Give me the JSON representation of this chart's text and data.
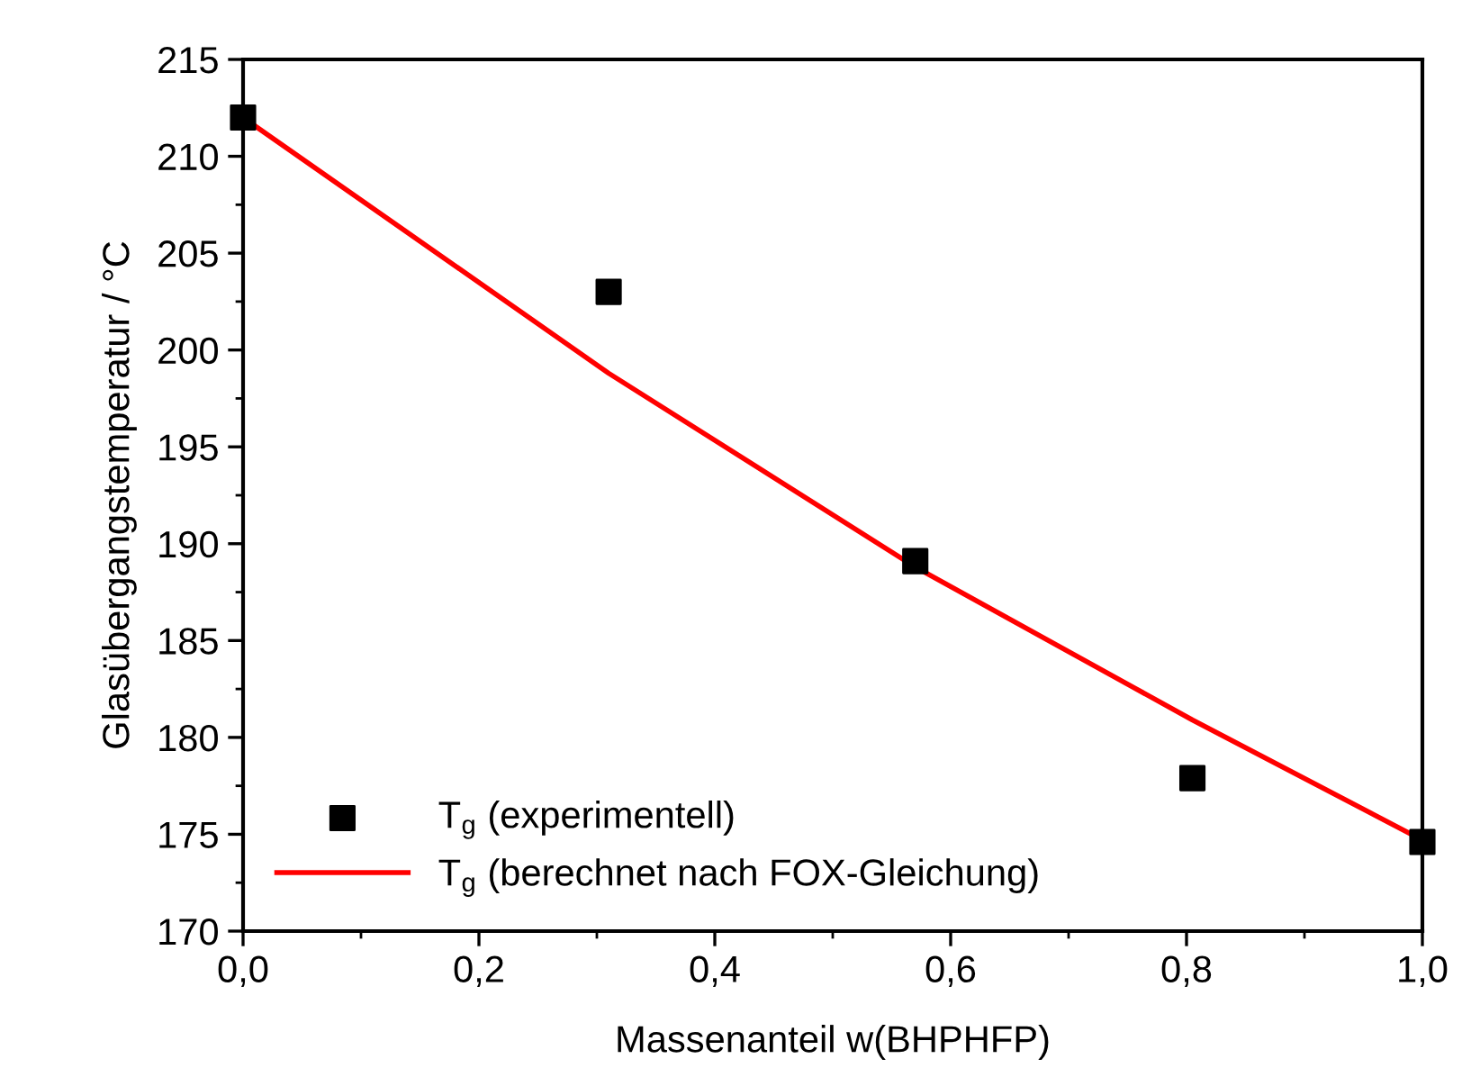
{
  "chart_data": {
    "type": "scatter",
    "xlabel": "Massenanteil w(BHPHFP)",
    "ylabel": "Glasübergangstemperatur / °C",
    "xlim": [
      0,
      1
    ],
    "ylim": [
      170,
      215
    ],
    "xticks": [
      {
        "value": 0,
        "label": "0,0"
      },
      {
        "value": 0.2,
        "label": "0,2"
      },
      {
        "value": 0.4,
        "label": "0,4"
      },
      {
        "value": 0.6,
        "label": "0,6"
      },
      {
        "value": 0.8,
        "label": "0,8"
      },
      {
        "value": 1,
        "label": "1,0"
      }
    ],
    "yticks": [
      170,
      175,
      180,
      185,
      190,
      195,
      200,
      205,
      210,
      215
    ],
    "legend": "bottom left",
    "grid": false,
    "series": [
      {
        "name": "T$_{g}$ (experimentell)",
        "marker": "square",
        "color": "#000000",
        "x": [
          0,
          0.31,
          0.57,
          0.805,
          1.0
        ],
        "values": [
          212.0,
          203.0,
          189.1,
          177.9,
          174.6
        ]
      },
      {
        "name": "T$_{g}$ (berechnet nach FOX-Gleichung)",
        "type": "line",
        "marker": "none",
        "line_style": "solid",
        "color": "#ff0000",
        "x": [
          0,
          0.31,
          0.57,
          0.805,
          1.0
        ],
        "values": [
          212.0,
          198.8,
          188.8,
          180.9,
          174.7
        ]
      }
    ]
  }
}
